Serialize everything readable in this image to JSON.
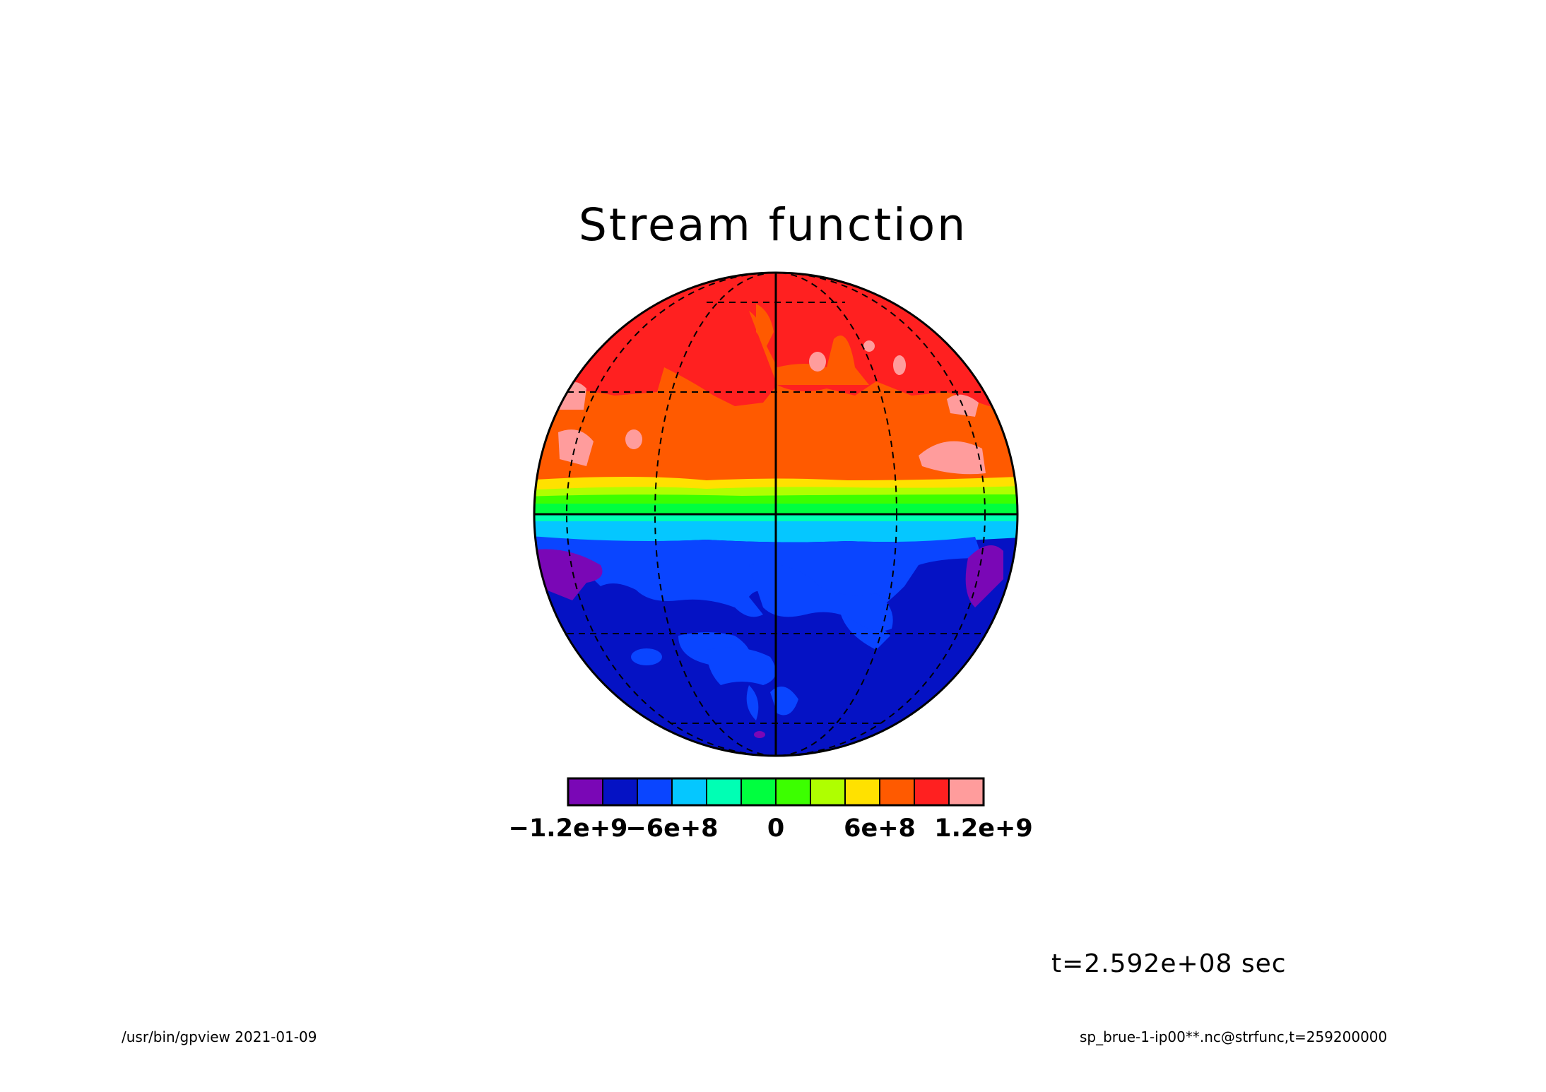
{
  "chart_data": {
    "type": "heatmap",
    "title": "Stream function",
    "projection": "orthographic",
    "levels": [
      -1200000000.0,
      -1000000000.0,
      -800000000.0,
      -600000000.0,
      -400000000.0,
      -200000000.0,
      0,
      200000000.0,
      400000000.0,
      600000000.0,
      800000000.0,
      1000000000.0,
      1200000000.0
    ],
    "colorbar_colors": [
      "#7a07b6",
      "#0512c4",
      "#0a45ff",
      "#05c7ff",
      "#00ffb4",
      "#00ff3f",
      "#3cff00",
      "#afff00",
      "#ffe100",
      "#ff5a00",
      "#ff2020",
      "#ff9c9c"
    ],
    "colorbar_tick_labels": [
      "−1.2e+9",
      "−6e+8",
      "0",
      "6e+8",
      "1.2e+9"
    ],
    "colorbar_tick_values": [
      -1200000000.0,
      -600000000.0,
      0,
      600000000.0,
      1200000000.0
    ],
    "time_label": "t=2.592e+08 sec",
    "footer_left": "/usr/bin/gpview   2021-01-09",
    "footer_right": "sp_brue-1-ip00**.nc@strfunc,t=259200000",
    "grid": true
  }
}
